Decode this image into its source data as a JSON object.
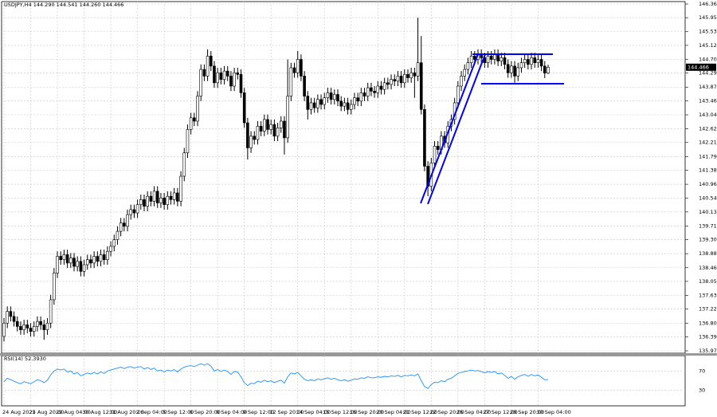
{
  "chart_data": [
    {
      "type": "candlestick",
      "title": "USDJPY,H4 144.290 144.541 144.260 144.466",
      "categories": [
        "24 Aug 2022",
        null,
        null,
        null,
        null,
        null,
        null,
        null,
        "25 Aug 20:00",
        null,
        null,
        null,
        null,
        null,
        null,
        null,
        "29 Aug 04:00",
        null,
        null,
        null,
        null,
        null,
        null,
        null,
        "30 Aug 12:00",
        null,
        null,
        null,
        null,
        null,
        null,
        null,
        "31 Aug 20:00",
        null,
        null,
        null,
        null,
        null,
        null,
        null,
        "2 Sep 04:00",
        null,
        null,
        null,
        null,
        null,
        null,
        null,
        "5 Sep 12:00",
        null,
        null,
        null,
        null,
        null,
        null,
        null,
        "6 Sep 20:00",
        null,
        null,
        null,
        null,
        null,
        null,
        null,
        "8 Sep 04:00",
        null,
        null,
        null,
        null,
        null,
        null,
        null,
        "9 Sep 12:00",
        null,
        null,
        null,
        null,
        null,
        null,
        null,
        "12 Sep 20:00",
        null,
        null,
        null,
        null,
        null,
        null,
        null,
        "14 Sep 04:00",
        null,
        null,
        null,
        null,
        null,
        null,
        null,
        "15 Sep 12:00",
        null,
        null,
        null,
        null,
        null,
        null,
        null,
        "16 Sep 20:00",
        null,
        null,
        null,
        null,
        null,
        null,
        null,
        "20 Sep 04:00",
        null,
        null,
        null,
        null,
        null,
        null,
        null,
        "21 Sep 12:00",
        null,
        null,
        null,
        null,
        null,
        null,
        null,
        "22 Sep 20:00",
        null,
        null,
        null,
        null,
        null,
        null,
        null,
        "26 Sep 04:00",
        null,
        null,
        null,
        null,
        null,
        null,
        null,
        "27 Sep 12:00",
        null,
        null,
        null,
        null,
        null,
        null,
        null,
        "28 Sep 20:00",
        null,
        null,
        null,
        null,
        null,
        null,
        null,
        "30 Sep 04:00",
        null,
        null,
        null
      ],
      "open": [
        136.4,
        136.8,
        137.15,
        137.0,
        136.85,
        136.7,
        136.6,
        136.75,
        136.65,
        136.55,
        136.7,
        136.85,
        136.75,
        136.6,
        136.8,
        137.5,
        138.3,
        138.8,
        138.7,
        138.85,
        138.6,
        138.75,
        138.5,
        138.65,
        138.35,
        138.55,
        138.7,
        138.6,
        138.8,
        138.65,
        138.85,
        138.7,
        138.95,
        139.1,
        139.3,
        139.55,
        139.8,
        139.7,
        140.05,
        140.2,
        140.1,
        140.35,
        140.5,
        140.3,
        140.6,
        140.45,
        140.75,
        140.4,
        140.55,
        140.35,
        140.6,
        140.5,
        140.7,
        140.45,
        141.2,
        141.9,
        142.6,
        142.95,
        142.85,
        143.6,
        144.4,
        144.2,
        144.8,
        144.5,
        144.0,
        144.3,
        144.1,
        144.35,
        144.2,
        143.9,
        144.3,
        144.25,
        143.7,
        142.8,
        142.05,
        142.4,
        142.3,
        142.7,
        142.55,
        142.9,
        142.6,
        142.75,
        142.4,
        142.65,
        142.85,
        142.35,
        143.6,
        144.45,
        144.3,
        144.7,
        144.2,
        143.6,
        143.2,
        143.4,
        143.25,
        143.5,
        143.35,
        143.55,
        143.7,
        143.5,
        143.65,
        143.45,
        143.3,
        143.4,
        143.2,
        143.35,
        143.55,
        143.45,
        143.7,
        143.6,
        143.85,
        143.75,
        143.7,
        143.9,
        143.8,
        144.0,
        143.95,
        144.1,
        144.05,
        144.2,
        144.0,
        144.25,
        144.15,
        144.3,
        144.2,
        144.6,
        143.2,
        141.5,
        140.9,
        141.6,
        142.1,
        142.0,
        142.4,
        142.2,
        142.7,
        142.9,
        143.4,
        143.9,
        144.2,
        144.4,
        144.6,
        144.8,
        144.7,
        144.85,
        144.75,
        144.6,
        144.8,
        144.7,
        144.85,
        144.65,
        144.75,
        144.55,
        144.3,
        144.5,
        144.2,
        144.45,
        144.6,
        144.7,
        144.55,
        144.75,
        144.6,
        144.7,
        144.5,
        144.29
      ],
      "high": [
        136.95,
        137.3,
        137.3,
        137.15,
        137.0,
        136.85,
        136.9,
        136.9,
        136.8,
        136.85,
        137.0,
        137.0,
        136.9,
        136.95,
        137.65,
        138.45,
        138.95,
        138.95,
        139.0,
        139.0,
        138.9,
        138.9,
        138.8,
        138.8,
        138.7,
        138.85,
        138.85,
        138.95,
        138.95,
        139.0,
        139.0,
        139.1,
        139.25,
        139.45,
        139.7,
        139.95,
        139.95,
        140.2,
        140.35,
        140.35,
        140.5,
        140.65,
        140.65,
        140.75,
        140.75,
        140.9,
        140.9,
        140.7,
        140.7,
        140.75,
        140.75,
        140.85,
        140.85,
        141.35,
        142.05,
        142.75,
        143.1,
        143.1,
        143.75,
        144.55,
        144.55,
        145.0,
        144.95,
        144.65,
        144.45,
        144.45,
        144.5,
        144.5,
        144.35,
        144.45,
        144.45,
        144.4,
        143.85,
        142.95,
        142.55,
        142.55,
        142.85,
        142.85,
        143.05,
        143.05,
        142.9,
        142.9,
        142.8,
        143.0,
        143.0,
        144.7,
        144.6,
        144.6,
        144.95,
        144.85,
        144.35,
        143.75,
        143.55,
        143.55,
        143.65,
        143.65,
        143.7,
        143.85,
        143.85,
        143.8,
        143.8,
        143.6,
        143.55,
        143.55,
        143.5,
        143.7,
        143.7,
        143.85,
        143.85,
        144.0,
        144.0,
        143.9,
        144.05,
        144.05,
        144.15,
        144.15,
        144.25,
        144.25,
        144.35,
        144.35,
        144.4,
        144.4,
        144.45,
        144.45,
        145.95,
        145.4,
        143.35,
        141.65,
        141.75,
        142.25,
        142.25,
        142.55,
        142.55,
        142.85,
        143.05,
        143.55,
        144.05,
        144.35,
        144.55,
        144.75,
        144.95,
        144.95,
        145.0,
        145.0,
        144.9,
        144.95,
        144.95,
        145.0,
        145.0,
        144.9,
        144.9,
        144.7,
        144.65,
        144.65,
        144.6,
        144.75,
        144.85,
        144.85,
        144.9,
        144.9,
        144.85,
        144.85,
        144.65,
        144.541
      ],
      "low": [
        136.25,
        136.65,
        136.85,
        136.7,
        136.55,
        136.45,
        136.45,
        136.5,
        136.4,
        136.4,
        136.55,
        136.6,
        136.3,
        136.45,
        136.65,
        137.35,
        138.15,
        138.55,
        138.55,
        138.45,
        138.45,
        138.35,
        138.35,
        138.2,
        138.2,
        138.4,
        138.45,
        138.45,
        138.5,
        138.5,
        138.55,
        138.55,
        138.8,
        138.95,
        139.15,
        139.4,
        139.55,
        139.55,
        139.9,
        139.95,
        139.95,
        140.2,
        140.15,
        140.15,
        140.3,
        140.3,
        140.25,
        140.25,
        140.2,
        140.2,
        140.35,
        140.35,
        140.3,
        140.3,
        141.05,
        141.75,
        142.45,
        142.7,
        142.7,
        143.45,
        144.05,
        144.05,
        144.35,
        143.85,
        143.85,
        143.95,
        143.95,
        144.05,
        143.75,
        143.75,
        144.1,
        143.55,
        142.65,
        141.7,
        141.9,
        142.15,
        142.15,
        142.4,
        142.4,
        142.45,
        142.45,
        142.25,
        142.25,
        142.5,
        141.85,
        142.2,
        143.45,
        144.15,
        144.15,
        144.05,
        143.45,
        142.9,
        143.05,
        143.1,
        143.1,
        143.2,
        143.2,
        143.4,
        143.35,
        143.35,
        143.3,
        143.15,
        143.15,
        143.05,
        143.05,
        143.2,
        143.3,
        143.3,
        143.45,
        143.45,
        143.6,
        143.55,
        143.55,
        143.65,
        143.65,
        143.8,
        143.8,
        143.9,
        143.9,
        143.85,
        143.85,
        144.0,
        144.0,
        143.55,
        144.05,
        143.05,
        141.35,
        140.6,
        140.75,
        141.45,
        141.85,
        141.85,
        142.05,
        142.05,
        142.55,
        142.75,
        143.25,
        143.75,
        144.05,
        144.25,
        144.45,
        144.55,
        144.55,
        144.6,
        144.45,
        144.45,
        144.55,
        144.55,
        144.5,
        144.5,
        144.4,
        144.15,
        144.15,
        144.0,
        144.05,
        144.3,
        144.45,
        144.4,
        144.4,
        144.45,
        144.45,
        144.35,
        144.14,
        144.26
      ],
      "close": [
        136.8,
        137.15,
        137.0,
        136.85,
        136.7,
        136.6,
        136.75,
        136.65,
        136.55,
        136.7,
        136.85,
        136.75,
        136.6,
        136.8,
        137.5,
        138.3,
        138.8,
        138.7,
        138.85,
        138.6,
        138.75,
        138.5,
        138.65,
        138.35,
        138.55,
        138.7,
        138.6,
        138.8,
        138.65,
        138.85,
        138.7,
        138.95,
        139.1,
        139.3,
        139.55,
        139.8,
        139.7,
        140.05,
        140.2,
        140.1,
        140.35,
        140.5,
        140.3,
        140.6,
        140.45,
        140.75,
        140.4,
        140.55,
        140.35,
        140.6,
        140.5,
        140.7,
        140.45,
        141.2,
        141.9,
        142.6,
        142.95,
        142.85,
        143.6,
        144.4,
        144.2,
        144.8,
        144.5,
        144.0,
        144.3,
        144.1,
        144.35,
        144.2,
        143.9,
        144.3,
        144.25,
        143.7,
        142.8,
        142.05,
        142.4,
        142.3,
        142.7,
        142.55,
        142.9,
        142.6,
        142.75,
        142.4,
        142.65,
        142.85,
        142.35,
        143.6,
        144.45,
        144.3,
        144.7,
        144.2,
        143.6,
        143.2,
        143.4,
        143.25,
        143.5,
        143.35,
        143.55,
        143.7,
        143.5,
        143.65,
        143.45,
        143.3,
        143.4,
        143.2,
        143.35,
        143.55,
        143.45,
        143.7,
        143.6,
        143.85,
        143.75,
        143.7,
        143.9,
        143.8,
        144.0,
        143.95,
        144.1,
        144.05,
        144.2,
        144.0,
        144.25,
        144.15,
        144.3,
        144.2,
        144.6,
        143.2,
        141.5,
        140.9,
        141.6,
        142.1,
        142.0,
        142.4,
        142.2,
        142.7,
        142.9,
        143.4,
        143.9,
        144.2,
        144.4,
        144.6,
        144.8,
        144.7,
        144.85,
        144.75,
        144.6,
        144.8,
        144.7,
        144.85,
        144.65,
        144.75,
        144.55,
        144.3,
        144.5,
        144.2,
        144.45,
        144.6,
        144.7,
        144.55,
        144.75,
        144.6,
        144.7,
        144.5,
        144.29,
        144.466
      ],
      "ylim": [
        135.97,
        146.36
      ],
      "yticks": [
        {
          "value": 146.36,
          "label": "146.360"
        },
        {
          "value": 145.95,
          "label": "145.950"
        },
        {
          "value": 145.53,
          "label": "145.530"
        },
        {
          "value": 145.12,
          "label": "145.120"
        },
        {
          "value": 144.7,
          "label": "144.700"
        },
        {
          "value": 144.29,
          "label": "144.290"
        },
        {
          "value": 143.87,
          "label": "143.870"
        },
        {
          "value": 143.46,
          "label": "143.460"
        },
        {
          "value": 143.04,
          "label": "143.040"
        },
        {
          "value": 142.62,
          "label": "142.620"
        },
        {
          "value": 142.21,
          "label": "142.210"
        },
        {
          "value": 141.79,
          "label": "141.790"
        },
        {
          "value": 141.38,
          "label": "141.380"
        },
        {
          "value": 140.96,
          "label": "140.960"
        },
        {
          "value": 140.54,
          "label": "140.540"
        },
        {
          "value": 140.13,
          "label": "140.130"
        },
        {
          "value": 139.71,
          "label": "139.710"
        },
        {
          "value": 139.3,
          "label": "139.300"
        },
        {
          "value": 138.88,
          "label": "138.880"
        },
        {
          "value": 138.46,
          "label": "138.460"
        },
        {
          "value": 138.05,
          "label": "138.050"
        },
        {
          "value": 137.63,
          "label": "137.630"
        },
        {
          "value": 137.22,
          "label": "137.220"
        },
        {
          "value": 136.8,
          "label": "136.800"
        },
        {
          "value": 136.39,
          "label": "136.390"
        },
        {
          "value": 135.97,
          "label": "135.970"
        }
      ],
      "grid": true
    },
    {
      "type": "line",
      "title": "RSI(14) 52.3930",
      "color": "#1e90ff",
      "values": [
        48,
        55,
        52,
        49,
        46,
        44,
        48,
        46,
        44,
        48,
        52,
        50,
        46,
        51,
        62,
        70,
        74,
        72,
        74,
        68,
        70,
        64,
        67,
        60,
        63,
        66,
        64,
        67,
        64,
        68,
        65,
        70,
        72,
        74,
        76,
        78,
        75,
        78,
        79,
        76,
        78,
        79,
        74,
        77,
        73,
        76,
        70,
        72,
        68,
        72,
        70,
        73,
        68,
        74,
        78,
        80,
        81,
        79,
        82,
        85,
        82,
        85,
        80,
        70,
        73,
        69,
        72,
        69,
        63,
        69,
        68,
        58,
        46,
        40,
        45,
        44,
        49,
        47,
        51,
        48,
        50,
        46,
        49,
        51,
        45,
        58,
        66,
        64,
        67,
        60,
        53,
        50,
        52,
        50,
        54,
        52,
        54,
        56,
        53,
        55,
        52,
        50,
        52,
        49,
        51,
        54,
        53,
        56,
        55,
        58,
        56,
        56,
        58,
        57,
        59,
        58,
        60,
        59,
        61,
        58,
        61,
        60,
        62,
        60,
        64,
        50,
        38,
        34,
        42,
        47,
        46,
        50,
        48,
        53,
        55,
        60,
        65,
        67,
        69,
        70,
        72,
        70,
        71,
        69,
        66,
        69,
        67,
        69,
        64,
        66,
        61,
        55,
        59,
        53,
        58,
        61,
        63,
        59,
        63,
        60,
        62,
        57,
        52,
        52.393
      ],
      "ylim": [
        0,
        100
      ],
      "yticks": [
        30,
        70
      ]
    }
  ]
}
